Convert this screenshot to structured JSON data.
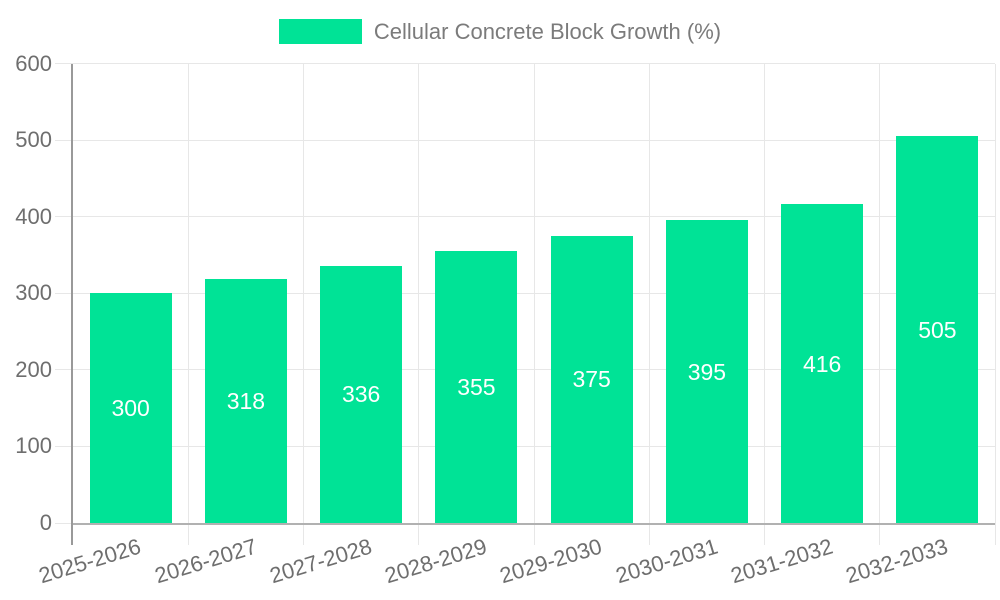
{
  "chart_data": {
    "type": "bar",
    "title": "Cellular Concrete Block Growth (%)",
    "categories": [
      "2025-2026",
      "2026-2027",
      "2027-2028",
      "2028-2029",
      "2029-2030",
      "2030-2031",
      "2031-2032",
      "2032-2033"
    ],
    "values": [
      300,
      318,
      336,
      355,
      375,
      395,
      416,
      505
    ],
    "xlabel": "",
    "ylabel": "",
    "ylim": [
      0,
      600
    ],
    "ytick_step": 100,
    "yticks": [
      0,
      100,
      200,
      300,
      400,
      500,
      600
    ],
    "grid": true,
    "legend_position": "top",
    "bar_color": "#00E396",
    "data_label_color": "#ffffff",
    "axis_label_color": "#6e6e6e",
    "legend_text_color": "#7b7b7b",
    "gridline_color": "#e7e7e7",
    "y_axis_line_color": "#999999",
    "x_axis_line_color": "#b1b1b1"
  }
}
